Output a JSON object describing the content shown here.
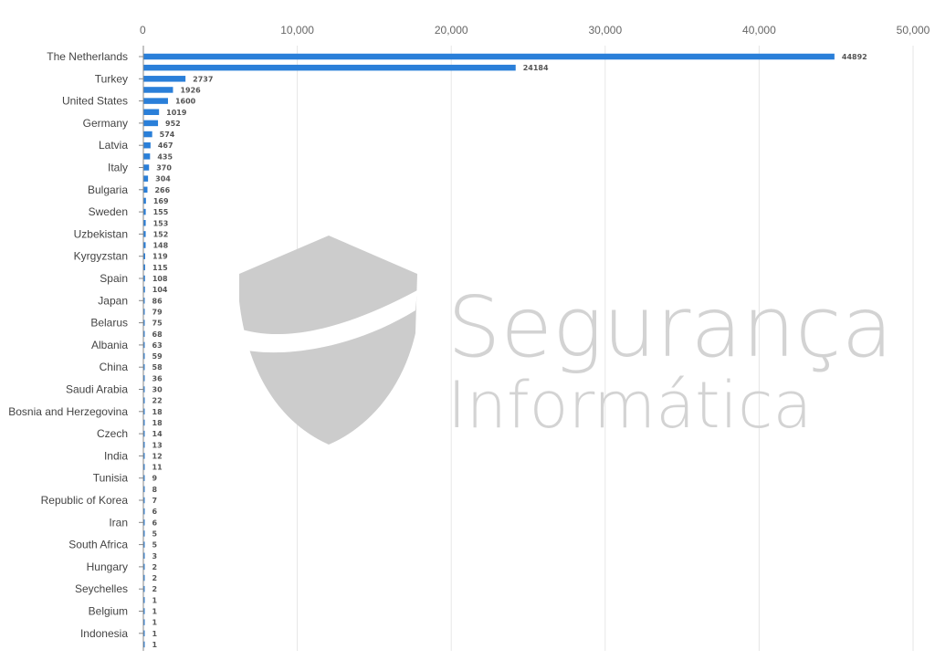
{
  "chart_data": {
    "type": "bar",
    "orientation": "horizontal",
    "categories": [
      "The Netherlands",
      "",
      "Turkey",
      "",
      "United States",
      "",
      "Germany",
      "",
      "Latvia",
      "",
      "Italy",
      "",
      "Bulgaria",
      "",
      "Sweden",
      "",
      "Uzbekistan",
      "",
      "Kyrgyzstan",
      "",
      "Spain",
      "",
      "Japan",
      "",
      "Belarus",
      "",
      "Albania",
      "",
      "China",
      "",
      "Saudi Arabia",
      "",
      "Bosnia and Herzegovina",
      "",
      "Czech",
      "",
      "India",
      "",
      "Tunisia",
      "",
      "Republic of Korea",
      "",
      "Iran",
      "",
      "South Africa",
      "",
      "Hungary",
      "",
      "Seychelles",
      "",
      "Belgium",
      "",
      "Indonesia",
      ""
    ],
    "values": [
      44892,
      24184,
      2737,
      1926,
      1600,
      1019,
      952,
      574,
      467,
      435,
      370,
      304,
      266,
      169,
      155,
      153,
      152,
      148,
      119,
      115,
      108,
      104,
      86,
      79,
      75,
      68,
      63,
      59,
      58,
      36,
      30,
      22,
      18,
      18,
      14,
      13,
      12,
      11,
      9,
      8,
      7,
      6,
      6,
      5,
      5,
      3,
      2,
      2,
      2,
      1,
      1,
      1,
      1,
      1
    ],
    "xlim": [
      0,
      50000
    ],
    "xticks": [
      "0",
      "10,000",
      "20,000",
      "30,000",
      "40,000",
      "50,000"
    ],
    "grid": true,
    "colors": {
      "bar": "#2a7fd9"
    }
  },
  "watermark": {
    "line1": "Segurança",
    "line2": "Informática"
  }
}
